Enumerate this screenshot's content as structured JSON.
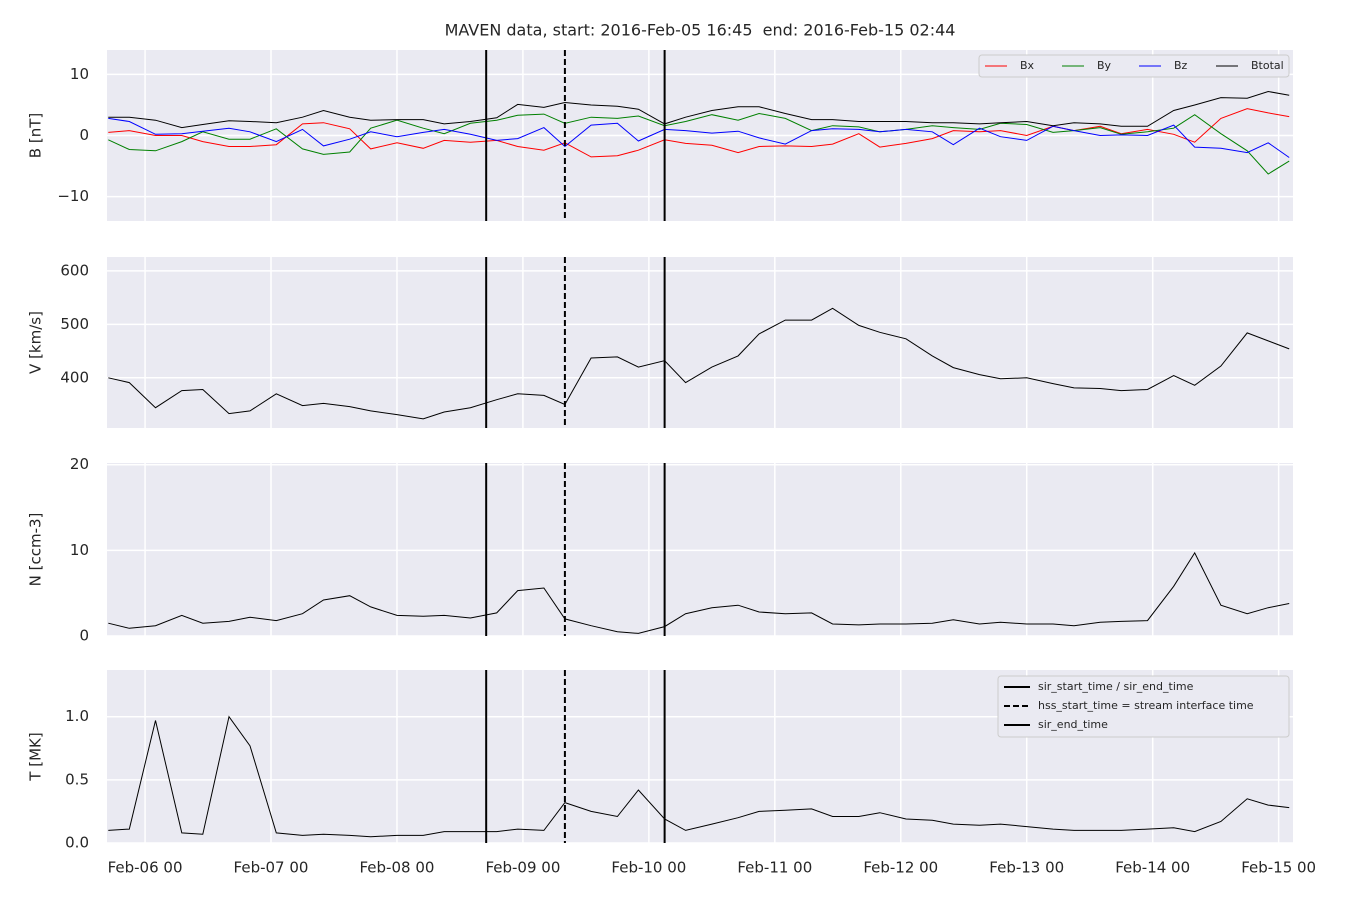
{
  "chart_data": [
    {
      "type": "line",
      "title": "MAVEN data, start: 2016-Feb-05 16:45  end: 2016-Feb-15 02:44",
      "ylabel": "B [nT]",
      "x": [
        "Feb-05 17",
        "Feb-05 21",
        "Feb-06 02",
        "Feb-06 07",
        "Feb-06 11",
        "Feb-06 16",
        "Feb-06 20",
        "Feb-07 01",
        "Feb-07 06",
        "Feb-07 10",
        "Feb-07 15",
        "Feb-07 19",
        "Feb-08 00",
        "Feb-08 05",
        "Feb-08 09",
        "Feb-08 14",
        "Feb-08 19",
        "Feb-08 23",
        "Feb-09 04",
        "Feb-09 08",
        "Feb-09 13",
        "Feb-09 18",
        "Feb-09 22",
        "Feb-10 03",
        "Feb-10 07",
        "Feb-10 12",
        "Feb-10 17",
        "Feb-10 21",
        "Feb-11 02",
        "Feb-11 07",
        "Feb-11 11",
        "Feb-11 16",
        "Feb-11 20",
        "Feb-12 01",
        "Feb-12 06",
        "Feb-12 10",
        "Feb-12 15",
        "Feb-12 19",
        "Feb-13 00",
        "Feb-13 05",
        "Feb-13 09",
        "Feb-13 14",
        "Feb-13 18",
        "Feb-13 23",
        "Feb-14 04",
        "Feb-14 08",
        "Feb-14 13",
        "Feb-14 18",
        "Feb-14 22",
        "Feb-15 02"
      ],
      "xlim": [
        "Feb-05 16:45",
        "Feb-15 02:44"
      ],
      "xticks": [
        "Feb-06 00",
        "Feb-07 00",
        "Feb-08 00",
        "Feb-09 00",
        "Feb-10 00",
        "Feb-11 00",
        "Feb-12 00",
        "Feb-13 00",
        "Feb-14 00",
        "Feb-15 00"
      ],
      "ylim": [
        -14,
        14
      ],
      "yticks": [
        {
          "value": -10,
          "label": "−10"
        },
        0,
        10
      ],
      "grid": true,
      "legend": "upper right",
      "series": [
        {
          "name": "Bx",
          "color": "#ff0000",
          "values": [
            0.5,
            0.8,
            0,
            0,
            -1.0,
            -1.8,
            -1.8,
            -1.5,
            1.9,
            2.1,
            1.1,
            -2.2,
            -1.2,
            -2.1,
            -0.8,
            -1.1,
            -0.8,
            -1.8,
            -2.4,
            -1.2,
            -3.5,
            -3.3,
            -2.4,
            -0.7,
            -1.3,
            -1.6,
            -2.8,
            -1.8,
            -1.7,
            -1.8,
            -1.4,
            0.3,
            -1.9,
            -1.3,
            -0.5,
            0.8,
            0.6,
            0.8,
            0,
            1.5,
            0.8,
            1.5,
            0.3,
            1.0,
            0.2,
            -1.1,
            2.8,
            4.4,
            3.7,
            3.1
          ]
        },
        {
          "name": "By",
          "color": "#008000",
          "values": [
            -0.7,
            -2.3,
            -2.5,
            -1.0,
            0.6,
            -0.6,
            -0.6,
            1.1,
            -2.2,
            -3.1,
            -2.7,
            1.2,
            2.5,
            1.2,
            0.3,
            2.0,
            2.5,
            3.3,
            3.5,
            2.0,
            3.0,
            2.8,
            3.2,
            1.6,
            2.3,
            3.4,
            2.5,
            3.6,
            2.8,
            0.8,
            1.6,
            1.4,
            0.6,
            1.0,
            1.6,
            1.3,
            1.0,
            2.0,
            1.8,
            0.5,
            0.8,
            1.3,
            0.2,
            0.6,
            1.2,
            3.4,
            0.3,
            -2.5,
            -6.3,
            -4.2
          ]
        },
        {
          "name": "Bz",
          "color": "#0000ff",
          "values": [
            2.8,
            2.3,
            0.2,
            0.3,
            0.7,
            1.2,
            0.6,
            -1.0,
            1.0,
            -1.7,
            -0.6,
            0.6,
            -0.2,
            0.5,
            1.0,
            0.2,
            -0.8,
            -0.5,
            1.3,
            -1.8,
            1.7,
            2.0,
            -0.9,
            1.0,
            0.8,
            0.4,
            0.7,
            -0.4,
            -1.4,
            0.8,
            1.1,
            1.0,
            0.6,
            1.0,
            0.6,
            -1.5,
            1.2,
            -0.2,
            -0.8,
            1.5,
            0.8,
            0,
            0.1,
            0,
            1.7,
            -1.9,
            -2.1,
            -2.8,
            -1.2,
            -3.6
          ]
        },
        {
          "name": "Btotal",
          "color": "#000000",
          "values": [
            3.0,
            3.0,
            2.5,
            1.3,
            1.8,
            2.4,
            2.3,
            2.1,
            3.0,
            4.1,
            3.0,
            2.5,
            2.6,
            2.6,
            1.9,
            2.3,
            2.9,
            5.1,
            4.6,
            5.4,
            5.0,
            4.8,
            4.3,
            1.9,
            3.0,
            4.1,
            4.7,
            4.7,
            3.6,
            2.6,
            2.6,
            2.3,
            2.3,
            2.3,
            2.1,
            2.1,
            1.9,
            2.1,
            2.3,
            1.6,
            2.1,
            1.9,
            1.5,
            1.5,
            4.1,
            5.0,
            6.2,
            6.1,
            7.2,
            6.6
          ]
        }
      ]
    },
    {
      "type": "line",
      "ylabel": "V [km/s]",
      "x": [
        "Feb-05 17",
        "Feb-05 21",
        "Feb-06 02",
        "Feb-06 07",
        "Feb-06 11",
        "Feb-06 16",
        "Feb-06 20",
        "Feb-07 01",
        "Feb-07 06",
        "Feb-07 10",
        "Feb-07 15",
        "Feb-07 19",
        "Feb-08 00",
        "Feb-08 05",
        "Feb-08 09",
        "Feb-08 14",
        "Feb-08 19",
        "Feb-08 23",
        "Feb-09 04",
        "Feb-09 08",
        "Feb-09 13",
        "Feb-09 18",
        "Feb-09 22",
        "Feb-10 03",
        "Feb-10 07",
        "Feb-10 12",
        "Feb-10 17",
        "Feb-10 21",
        "Feb-11 02",
        "Feb-11 07",
        "Feb-11 11",
        "Feb-11 16",
        "Feb-11 20",
        "Feb-12 01",
        "Feb-12 06",
        "Feb-12 10",
        "Feb-12 15",
        "Feb-12 19",
        "Feb-13 00",
        "Feb-13 05",
        "Feb-13 09",
        "Feb-13 14",
        "Feb-13 18",
        "Feb-13 23",
        "Feb-14 04",
        "Feb-14 08",
        "Feb-14 13",
        "Feb-14 18",
        "Feb-14 22",
        "Feb-15 02"
      ],
      "xlim": [
        "Feb-05 16:45",
        "Feb-15 02:44"
      ],
      "xticks": [
        "Feb-06 00",
        "Feb-07 00",
        "Feb-08 00",
        "Feb-09 00",
        "Feb-10 00",
        "Feb-11 00",
        "Feb-12 00",
        "Feb-13 00",
        "Feb-14 00",
        "Feb-15 00"
      ],
      "ylim": [
        306,
        626
      ],
      "yticks": [
        400,
        500,
        600
      ],
      "grid": true,
      "series": [
        {
          "color": "#000000",
          "values": [
            400,
            391,
            344,
            376,
            378,
            333,
            338,
            370,
            348,
            352,
            346,
            338,
            331,
            323,
            336,
            344,
            359,
            370,
            367,
            350,
            437,
            439,
            420,
            432,
            391,
            420,
            441,
            482,
            508,
            508,
            530,
            498,
            485,
            473,
            441,
            419,
            406,
            398,
            400,
            389,
            381,
            380,
            376,
            378,
            404,
            386,
            422,
            484,
            469,
            454
          ]
        }
      ]
    },
    {
      "type": "line",
      "ylabel": "N [ccm-3]",
      "x": [
        "Feb-05 17",
        "Feb-05 21",
        "Feb-06 02",
        "Feb-06 07",
        "Feb-06 11",
        "Feb-06 16",
        "Feb-06 20",
        "Feb-07 01",
        "Feb-07 06",
        "Feb-07 10",
        "Feb-07 15",
        "Feb-07 19",
        "Feb-08 00",
        "Feb-08 05",
        "Feb-08 09",
        "Feb-08 14",
        "Feb-08 19",
        "Feb-08 23",
        "Feb-09 04",
        "Feb-09 08",
        "Feb-09 13",
        "Feb-09 18",
        "Feb-09 22",
        "Feb-10 03",
        "Feb-10 07",
        "Feb-10 12",
        "Feb-10 17",
        "Feb-10 21",
        "Feb-11 02",
        "Feb-11 07",
        "Feb-11 11",
        "Feb-11 16",
        "Feb-11 20",
        "Feb-12 01",
        "Feb-12 06",
        "Feb-12 10",
        "Feb-12 15",
        "Feb-12 19",
        "Feb-13 00",
        "Feb-13 05",
        "Feb-13 09",
        "Feb-13 14",
        "Feb-13 18",
        "Feb-13 23",
        "Feb-14 04",
        "Feb-14 08",
        "Feb-14 13",
        "Feb-14 18",
        "Feb-14 22",
        "Feb-15 02"
      ],
      "xlim": [
        "Feb-05 16:45",
        "Feb-15 02:44"
      ],
      "xticks": [
        "Feb-06 00",
        "Feb-07 00",
        "Feb-08 00",
        "Feb-09 00",
        "Feb-10 00",
        "Feb-11 00",
        "Feb-12 00",
        "Feb-13 00",
        "Feb-14 00",
        "Feb-15 00"
      ],
      "ylim": [
        0,
        20.2
      ],
      "yticks": [
        0,
        10,
        20
      ],
      "grid": true,
      "series": [
        {
          "color": "#000000",
          "values": [
            1.5,
            0.9,
            1.2,
            2.4,
            1.5,
            1.7,
            2.2,
            1.8,
            2.6,
            4.2,
            4.7,
            3.4,
            2.4,
            2.3,
            2.4,
            2.1,
            2.7,
            5.3,
            5.6,
            2.0,
            1.2,
            0.5,
            0.3,
            1.1,
            2.6,
            3.3,
            3.6,
            2.8,
            2.6,
            2.7,
            1.4,
            1.3,
            1.4,
            1.4,
            1.5,
            1.9,
            1.4,
            1.6,
            1.4,
            1.4,
            1.2,
            1.6,
            1.7,
            1.8,
            5.8,
            9.7,
            3.6,
            2.6,
            3.3,
            3.8
          ]
        }
      ]
    },
    {
      "type": "line",
      "ylabel": "T [MK]",
      "x": [
        "Feb-05 17",
        "Feb-05 21",
        "Feb-06 02",
        "Feb-06 07",
        "Feb-06 11",
        "Feb-06 16",
        "Feb-06 20",
        "Feb-07 01",
        "Feb-07 06",
        "Feb-07 10",
        "Feb-07 15",
        "Feb-07 19",
        "Feb-08 00",
        "Feb-08 05",
        "Feb-08 09",
        "Feb-08 14",
        "Feb-08 19",
        "Feb-08 23",
        "Feb-09 04",
        "Feb-09 08",
        "Feb-09 13",
        "Feb-09 18",
        "Feb-09 22",
        "Feb-10 03",
        "Feb-10 07",
        "Feb-10 12",
        "Feb-10 17",
        "Feb-10 21",
        "Feb-11 02",
        "Feb-11 07",
        "Feb-11 11",
        "Feb-11 16",
        "Feb-11 20",
        "Feb-12 01",
        "Feb-12 06",
        "Feb-12 10",
        "Feb-12 15",
        "Feb-12 19",
        "Feb-13 00",
        "Feb-13 05",
        "Feb-13 09",
        "Feb-13 14",
        "Feb-13 18",
        "Feb-13 23",
        "Feb-14 04",
        "Feb-14 08",
        "Feb-14 13",
        "Feb-14 18",
        "Feb-14 22",
        "Feb-15 02"
      ],
      "xlim": [
        "Feb-05 16:45",
        "Feb-15 02:44"
      ],
      "xticks": [
        "Feb-06 00",
        "Feb-07 00",
        "Feb-08 00",
        "Feb-09 00",
        "Feb-10 00",
        "Feb-11 00",
        "Feb-12 00",
        "Feb-13 00",
        "Feb-14 00",
        "Feb-15 00"
      ],
      "ylim": [
        0,
        1.37
      ],
      "yticks": [
        {
          "value": 0,
          "label": "0.0"
        },
        0.5,
        {
          "value": 1,
          "label": "1.0"
        }
      ],
      "grid": true,
      "legend": "upper right",
      "series": [
        {
          "color": "#000000",
          "values": [
            0.1,
            0.11,
            0.97,
            0.08,
            0.07,
            1.0,
            0.77,
            0.08,
            0.06,
            0.07,
            0.06,
            0.05,
            0.06,
            0.06,
            0.09,
            0.09,
            0.09,
            0.11,
            0.1,
            0.32,
            0.25,
            0.21,
            0.42,
            0.19,
            0.1,
            0.15,
            0.2,
            0.25,
            0.26,
            0.27,
            0.21,
            0.21,
            0.24,
            0.19,
            0.18,
            0.15,
            0.14,
            0.15,
            0.13,
            0.11,
            0.1,
            0.1,
            0.1,
            0.11,
            0.12,
            0.09,
            0.17,
            0.35,
            0.3,
            0.28
          ]
        }
      ],
      "vlines": [
        {
          "name": "sir_start_time / sir_end_time",
          "x": "Feb-08 17",
          "style": "solid",
          "color": "#000000"
        },
        {
          "name": "hss_start_time = stream interface time",
          "x": "Feb-09 08",
          "style": "dashed",
          "color": "#000000"
        },
        {
          "name": "sir_end_time",
          "x": "Feb-10 03",
          "style": "solid",
          "color": "#000000"
        }
      ]
    }
  ]
}
